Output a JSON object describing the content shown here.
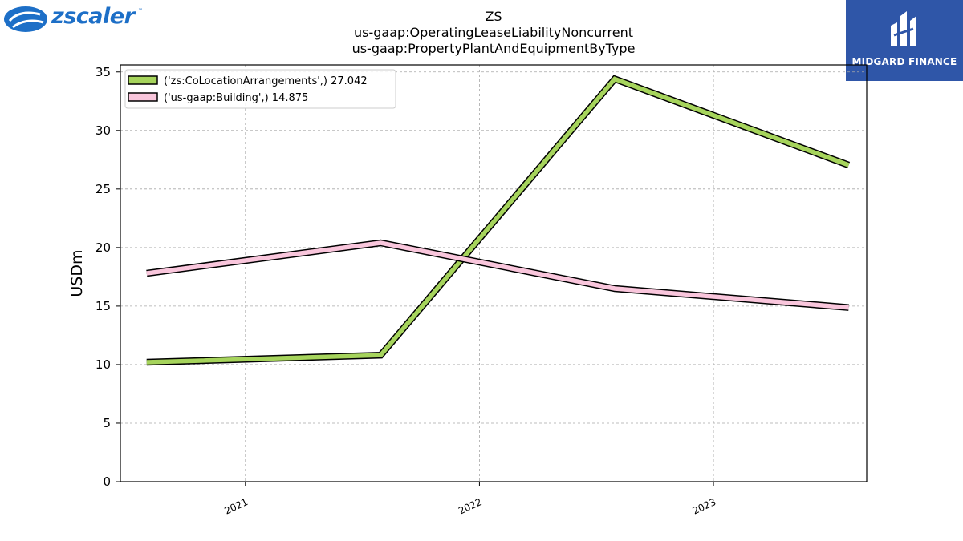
{
  "branding": {
    "left_logo_text": "zscaler",
    "left_logo_tm": "™",
    "right_logo_text": "MIDGARD FINANCE",
    "colors": {
      "zscaler_blue": "#1d6fc7",
      "midgard_blue": "#2f56a8"
    }
  },
  "chart_data": {
    "type": "line",
    "title_lines": [
      "ZS",
      "us-gaap:OperatingLeaseLiabilityNoncurrent",
      "us-gaap:PropertyPlantAndEquipmentByType"
    ],
    "xlabel": "",
    "ylabel": "USDm",
    "x": [
      "2020-07-31",
      "2021-07-31",
      "2022-07-31",
      "2023-07-31"
    ],
    "xlim": [
      "2020-06-20",
      "2023-08-28"
    ],
    "x_ticks": [
      "2021",
      "2022",
      "2023"
    ],
    "ylim": [
      0,
      35.6
    ],
    "y_ticks": [
      0,
      5,
      10,
      15,
      20,
      25,
      30,
      35
    ],
    "grid": true,
    "legend_position": "top-left",
    "series": [
      {
        "name": "('zs:CoLocationArrangements',) 27.042",
        "color": "#a6d45c",
        "values": [
          10.2,
          10.8,
          34.4,
          27.042
        ]
      },
      {
        "name": "('us-gaap:Building',) 14.875",
        "color": "#f9c6dc",
        "values": [
          17.8,
          20.4,
          16.5,
          14.875
        ]
      }
    ]
  }
}
